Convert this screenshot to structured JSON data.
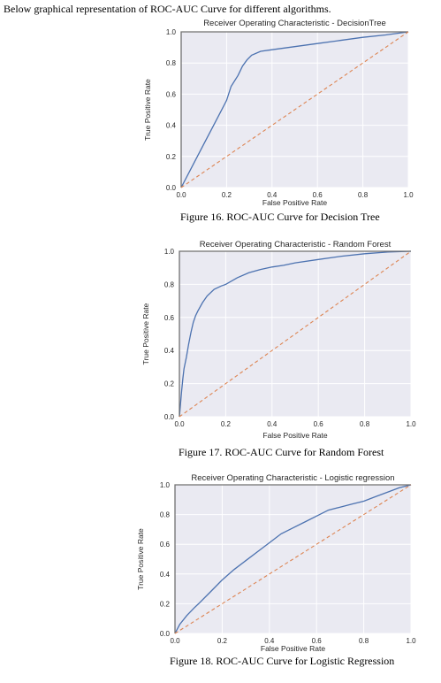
{
  "intro_text": "Below graphical representation of ROC-AUC Curve for different algorithms.",
  "colors": {
    "background": "#eaeaf2",
    "grid": "#ffffff",
    "roc": "#4c72b0",
    "diagonal": "#dd8452",
    "perfect": "#707070"
  },
  "chart_data": [
    {
      "type": "line",
      "title": "Receiver Operating Characteristic - DecisionTree",
      "xlabel": "False Positive Rate",
      "ylabel": "True Positive Rate",
      "xlim": [
        0,
        1
      ],
      "ylim": [
        0,
        1
      ],
      "xticks": [
        "0.0",
        "0.2",
        "0.4",
        "0.6",
        "0.8",
        "1.0"
      ],
      "yticks": [
        "0.0",
        "0.2",
        "0.4",
        "0.6",
        "0.8",
        "1.0"
      ],
      "grid": true,
      "caption": "Figure 16. ROC-AUC Curve for Decision Tree",
      "series": [
        {
          "role": "roc",
          "x": [
            0.0,
            0.05,
            0.1,
            0.15,
            0.2,
            0.22,
            0.25,
            0.27,
            0.29,
            0.31,
            0.35,
            0.4,
            0.5,
            0.6,
            0.7,
            0.8,
            0.9,
            1.0
          ],
          "y": [
            0.0,
            0.14,
            0.28,
            0.42,
            0.56,
            0.65,
            0.72,
            0.78,
            0.82,
            0.85,
            0.875,
            0.885,
            0.905,
            0.925,
            0.945,
            0.965,
            0.98,
            1.0
          ]
        },
        {
          "role": "perfect",
          "x": [
            0.0,
            0.0,
            1.0
          ],
          "y": [
            0.0,
            1.0,
            1.0
          ]
        },
        {
          "role": "diagonal",
          "x": [
            0.0,
            1.0
          ],
          "y": [
            0.0,
            1.0
          ]
        }
      ]
    },
    {
      "type": "line",
      "title": "Receiver Operating Characteristic - Random Forest",
      "xlabel": "False Positive Rate",
      "ylabel": "True Positive Rate",
      "xlim": [
        0,
        1
      ],
      "ylim": [
        0,
        1
      ],
      "xticks": [
        "0.0",
        "0.2",
        "0.4",
        "0.6",
        "0.8",
        "1.0"
      ],
      "yticks": [
        "0.0",
        "0.2",
        "0.4",
        "0.6",
        "0.8",
        "1.0"
      ],
      "grid": true,
      "caption": "Figure 17. ROC-AUC Curve for Random Forest",
      "series": [
        {
          "role": "roc",
          "x": [
            0.0,
            0.005,
            0.01,
            0.015,
            0.02,
            0.03,
            0.04,
            0.05,
            0.06,
            0.07,
            0.08,
            0.1,
            0.12,
            0.15,
            0.18,
            0.2,
            0.25,
            0.3,
            0.35,
            0.4,
            0.45,
            0.5,
            0.6,
            0.7,
            0.8,
            0.9,
            1.0
          ],
          "y": [
            0.0,
            0.08,
            0.16,
            0.23,
            0.29,
            0.36,
            0.44,
            0.51,
            0.57,
            0.61,
            0.64,
            0.69,
            0.73,
            0.77,
            0.79,
            0.8,
            0.84,
            0.87,
            0.89,
            0.905,
            0.915,
            0.93,
            0.95,
            0.97,
            0.985,
            0.995,
            1.0
          ]
        },
        {
          "role": "perfect",
          "x": [
            0.0,
            0.0,
            1.0
          ],
          "y": [
            0.0,
            1.0,
            1.0
          ]
        },
        {
          "role": "diagonal",
          "x": [
            0.0,
            1.0
          ],
          "y": [
            0.0,
            1.0
          ]
        }
      ]
    },
    {
      "type": "line",
      "title": "Receiver Operating Characteristic - Logistic regression",
      "xlabel": "False Positive Rate",
      "ylabel": "True Positive Rate",
      "xlim": [
        0,
        1
      ],
      "ylim": [
        0,
        1
      ],
      "xticks": [
        "0.0",
        "0.2",
        "0.4",
        "0.6",
        "0.8",
        "1.0"
      ],
      "yticks": [
        "0.0",
        "0.2",
        "0.4",
        "0.6",
        "0.8",
        "1.0"
      ],
      "grid": true,
      "caption": "Figure 18. ROC-AUC Curve for Logistic Regression",
      "series": [
        {
          "role": "roc",
          "x": [
            0.0,
            0.02,
            0.05,
            0.08,
            0.1,
            0.15,
            0.2,
            0.25,
            0.3,
            0.35,
            0.4,
            0.45,
            0.5,
            0.55,
            0.6,
            0.65,
            0.7,
            0.75,
            0.8,
            0.85,
            0.9,
            0.95,
            1.0
          ],
          "y": [
            0.0,
            0.06,
            0.12,
            0.17,
            0.2,
            0.28,
            0.36,
            0.43,
            0.49,
            0.55,
            0.61,
            0.67,
            0.71,
            0.75,
            0.79,
            0.83,
            0.85,
            0.87,
            0.89,
            0.92,
            0.95,
            0.98,
            1.0
          ]
        },
        {
          "role": "perfect",
          "x": [
            0.0,
            0.0,
            1.0
          ],
          "y": [
            0.0,
            1.0,
            1.0
          ]
        },
        {
          "role": "diagonal",
          "x": [
            0.0,
            1.0
          ],
          "y": [
            0.0,
            1.0
          ]
        }
      ]
    }
  ]
}
